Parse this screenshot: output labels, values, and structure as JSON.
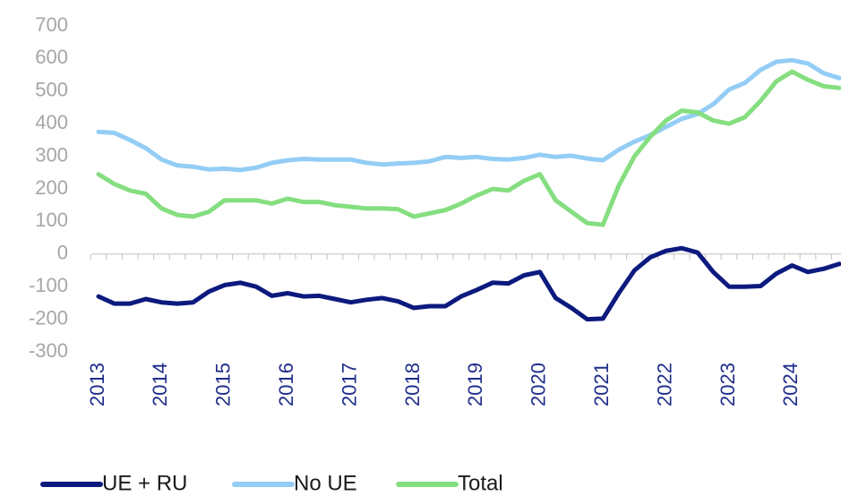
{
  "chart_data": {
    "type": "line",
    "categories": [
      "2013",
      null,
      null,
      null,
      "2014",
      null,
      null,
      null,
      "2015",
      null,
      null,
      null,
      "2016",
      null,
      null,
      null,
      "2017",
      null,
      null,
      null,
      "2018",
      null,
      null,
      null,
      "2019",
      null,
      null,
      null,
      "2020",
      null,
      null,
      null,
      "2021",
      null,
      null,
      null,
      "2022",
      null,
      null,
      null,
      "2023",
      null,
      null,
      null,
      "2024",
      null,
      null,
      null
    ],
    "series": [
      {
        "name": "UE + RU",
        "color": "#0c1a7e",
        "values": [
          -130,
          -152,
          -152,
          -138,
          -148,
          -152,
          -148,
          -115,
          -95,
          -88,
          -100,
          -128,
          -120,
          -130,
          -128,
          -138,
          -148,
          -140,
          -135,
          -145,
          -165,
          -160,
          -160,
          -130,
          -110,
          -88,
          -90,
          -65,
          -55,
          -135,
          -165,
          -200,
          -198,
          -120,
          -50,
          -10,
          10,
          18,
          5,
          -55,
          -100,
          -100,
          -98,
          -60,
          -35,
          -55,
          -45,
          -30
        ]
      },
      {
        "name": "No UE",
        "color": "#93cdf5",
        "values": [
          375,
          372,
          350,
          325,
          290,
          272,
          268,
          260,
          262,
          258,
          265,
          280,
          288,
          292,
          290,
          290,
          290,
          280,
          275,
          278,
          280,
          285,
          298,
          295,
          298,
          292,
          290,
          295,
          305,
          298,
          302,
          293,
          288,
          320,
          345,
          365,
          390,
          415,
          430,
          460,
          505,
          525,
          565,
          590,
          595,
          585,
          555,
          540
        ]
      },
      {
        "name": "Total",
        "color": "#85de80",
        "values": [
          245,
          215,
          195,
          185,
          140,
          120,
          115,
          130,
          165,
          165,
          165,
          155,
          170,
          160,
          160,
          150,
          145,
          140,
          140,
          138,
          115,
          125,
          135,
          155,
          180,
          200,
          195,
          225,
          245,
          165,
          130,
          95,
          90,
          210,
          300,
          360,
          410,
          440,
          435,
          410,
          400,
          420,
          470,
          530,
          560,
          535,
          515,
          510
        ]
      }
    ],
    "ylim": [
      -300,
      700
    ],
    "yticks": [
      -300,
      -200,
      -100,
      0,
      100,
      200,
      300,
      400,
      500,
      600,
      700
    ],
    "grid": false,
    "legend": "bottom"
  }
}
